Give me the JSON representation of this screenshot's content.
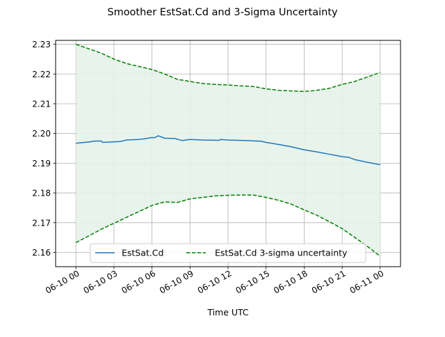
{
  "chart_data": {
    "type": "line",
    "title": "Smoother EstSat.Cd and 3-Sigma Uncertainty",
    "xlabel": "Time UTC",
    "ylabel": "",
    "x_ticks": [
      "06-10 00",
      "06-10 03",
      "06-10 06",
      "06-10 09",
      "06-10 12",
      "06-10 15",
      "06-10 18",
      "06-10 21",
      "06-11 00"
    ],
    "y_ticks": [
      "2.16",
      "2.17",
      "2.18",
      "2.19",
      "2.20",
      "2.21",
      "2.22",
      "2.23"
    ],
    "x_range_hours": [
      -1.6,
      25.6
    ],
    "ylim": [
      2.1552,
      2.2313
    ],
    "grid": true,
    "legend_position": "lower center",
    "colors": {
      "estimate": "#1f77b4",
      "sigma": "#008000",
      "fill": "#e5f2ea"
    },
    "series": [
      {
        "name": "EstSat.Cd",
        "style": "solid",
        "hours": [
          0,
          1.2,
          1.3,
          2.0,
          2.1,
          3.5,
          4.0,
          4.5,
          5.0,
          5.6,
          5.9,
          6.2,
          6.5,
          7.0,
          7.8,
          8.4,
          9.0,
          10.0,
          11.3,
          11.4,
          12.0,
          13.5,
          14.0,
          14.6,
          15.0,
          16.0,
          17.0,
          18.0,
          19.0,
          20.0,
          20.4,
          21.0,
          21.5,
          22.0,
          23.0,
          24.0
        ],
        "values": [
          2.1967,
          2.1972,
          2.1974,
          2.1975,
          2.197,
          2.1973,
          2.1978,
          2.1979,
          2.198,
          2.1983,
          2.1986,
          2.1986,
          2.1992,
          2.1984,
          2.1983,
          2.1976,
          2.198,
          2.1978,
          2.1977,
          2.198,
          2.1978,
          2.1976,
          2.1975,
          2.1974,
          2.197,
          2.1963,
          2.1955,
          2.1945,
          2.1938,
          2.193,
          2.1927,
          2.1922,
          2.192,
          2.1912,
          2.1903,
          2.1895
        ]
      },
      {
        "name": "EstSat.Cd 3-sigma uncertainty",
        "style": "dashed",
        "hours": [
          0,
          1,
          2,
          3,
          4,
          5,
          6,
          7,
          8,
          9,
          10,
          11,
          12,
          13,
          14,
          15,
          16,
          17,
          18,
          19,
          20,
          21,
          22,
          23,
          24
        ],
        "upper": [
          2.23,
          2.2285,
          2.227,
          2.225,
          2.2235,
          2.2225,
          2.2215,
          2.22,
          2.2182,
          2.2175,
          2.2168,
          2.2165,
          2.2163,
          2.216,
          2.2158,
          2.215,
          2.2145,
          2.2143,
          2.2141,
          2.2145,
          2.2152,
          2.2165,
          2.2175,
          2.219,
          2.2205
        ],
        "lower": [
          2.1633,
          2.1655,
          2.1678,
          2.1698,
          2.1718,
          2.1738,
          2.1758,
          2.177,
          2.1768,
          2.178,
          2.1785,
          2.179,
          2.1792,
          2.1793,
          2.1793,
          2.1785,
          2.1775,
          2.1762,
          2.1743,
          2.1725,
          2.1703,
          2.168,
          2.165,
          2.162,
          2.1587
        ]
      }
    ]
  }
}
